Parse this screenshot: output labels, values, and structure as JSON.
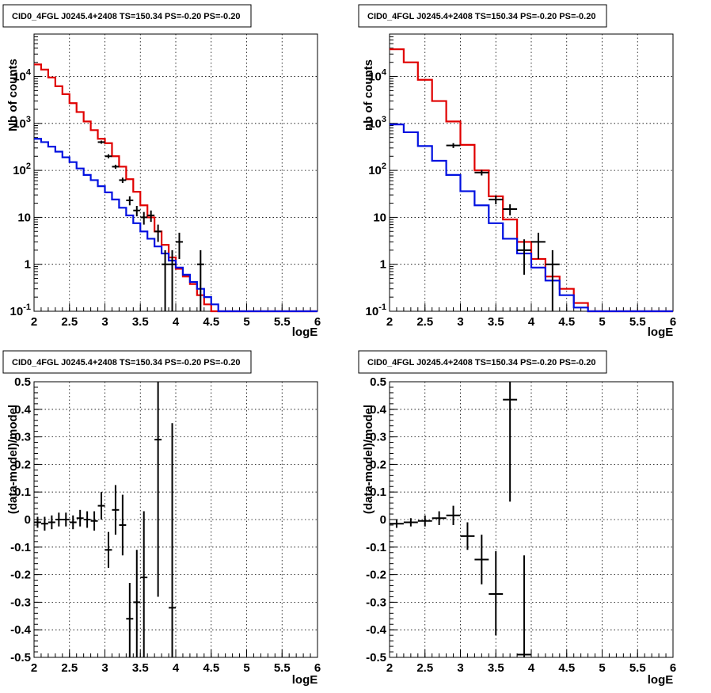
{
  "colors": {
    "data": "#000000",
    "total_model": "#e00000",
    "component_model": "#0010e0",
    "grid": "#000000"
  },
  "chart_data": [
    {
      "type": "line",
      "title": "CID0_4FGL J0245.4+2408 TS=150.34 PS=-0.20 PS=-0.20",
      "xlabel": "logE",
      "ylabel": "Nb of counts",
      "xlim": [
        2,
        6
      ],
      "ylim": [
        0.1,
        80000
      ],
      "yscale": "log",
      "grid": true,
      "x_ticks": [
        "2",
        "2.5",
        "3",
        "3.5",
        "4",
        "4.5",
        "5",
        "5.5",
        "6"
      ],
      "y_ticks": [
        {
          "value": 0.1,
          "base": "10",
          "exp": "-1"
        },
        {
          "value": 1,
          "text": "1"
        },
        {
          "value": 10,
          "text": "10"
        },
        {
          "value": 100,
          "base": "10",
          "exp": "2"
        },
        {
          "value": 1000,
          "base": "10",
          "exp": "3"
        },
        {
          "value": 10000,
          "base": "10",
          "exp": "4"
        }
      ],
      "bin_edges": [
        2.0,
        2.1,
        2.2,
        2.3,
        2.4,
        2.5,
        2.6,
        2.7,
        2.8,
        2.9,
        3.0,
        3.1,
        3.2,
        3.3,
        3.4,
        3.5,
        3.6,
        3.7,
        3.8,
        3.9,
        4.0,
        4.1,
        4.2,
        4.3,
        4.4,
        4.5,
        4.6,
        4.7,
        4.8,
        4.9,
        5.0,
        5.1,
        5.2,
        5.3,
        5.4,
        5.5,
        5.6,
        5.7,
        5.8,
        5.9,
        6.0
      ],
      "series": [
        {
          "kind": "step",
          "color": "total_model",
          "values": [
            18000,
            14000,
            9500,
            6200,
            4200,
            2700,
            1750,
            1100,
            720,
            470,
            380,
            200,
            120,
            65,
            35,
            18,
            10,
            5,
            2.6,
            1.4,
            0.8,
            0.55,
            0.38,
            0.22,
            0.14,
            0.1,
            0.08,
            0.08,
            0.08,
            0.08,
            0.08,
            0.08,
            0.08,
            0.08,
            0.08,
            0.08,
            0.08,
            0.08,
            0.08,
            0.08
          ]
        },
        {
          "kind": "step",
          "color": "component_model",
          "values": [
            470,
            400,
            320,
            250,
            190,
            150,
            110,
            80,
            62,
            46,
            34,
            24,
            16,
            11,
            7.5,
            5,
            3.5,
            2.4,
            1.7,
            1.2,
            0.85,
            0.6,
            0.42,
            0.3,
            0.2,
            0.14,
            0.1,
            0.1,
            0.1,
            0.1,
            0.1,
            0.1,
            0.1,
            0.1,
            0.1,
            0.1,
            0.1,
            0.1,
            0.1,
            0.1
          ]
        },
        {
          "kind": "points",
          "color": "data",
          "points": [
            {
              "x": 2.95,
              "y": 400,
              "lo": 370,
              "hi": 430,
              "xerr": 0.05
            },
            {
              "x": 3.05,
              "y": 200,
              "lo": 180,
              "hi": 220,
              "xerr": 0.05
            },
            {
              "x": 3.15,
              "y": 120,
              "lo": 108,
              "hi": 132,
              "xerr": 0.05
            },
            {
              "x": 3.25,
              "y": 62,
              "lo": 54,
              "hi": 70,
              "xerr": 0.05
            },
            {
              "x": 3.35,
              "y": 23,
              "lo": 18,
              "hi": 28,
              "xerr": 0.05
            },
            {
              "x": 3.45,
              "y": 14,
              "lo": 10.5,
              "hi": 17.5,
              "xerr": 0.05
            },
            {
              "x": 3.55,
              "y": 10,
              "lo": 7,
              "hi": 13,
              "xerr": 0.05
            },
            {
              "x": 3.65,
              "y": 11,
              "lo": 8,
              "hi": 14,
              "xerr": 0.05
            },
            {
              "x": 3.75,
              "y": 5,
              "lo": 3,
              "hi": 7,
              "xerr": 0.05
            },
            {
              "x": 3.85,
              "y": 1,
              "lo": 0.08,
              "hi": 2,
              "xerr": 0.05
            },
            {
              "x": 3.95,
              "y": 1,
              "lo": 0.08,
              "hi": 2,
              "xerr": 0.05
            },
            {
              "x": 4.05,
              "y": 3,
              "lo": 1.3,
              "hi": 4.7,
              "xerr": 0.05
            },
            {
              "x": 4.35,
              "y": 1,
              "lo": 0.08,
              "hi": 2,
              "xerr": 0.05
            }
          ]
        }
      ]
    },
    {
      "type": "line",
      "title": "CID0_4FGL J0245.4+2408 TS=150.34 PS=-0.20 PS=-0.20",
      "xlabel": "logE",
      "ylabel": "nb of counts",
      "xlim": [
        2,
        6
      ],
      "ylim": [
        0.1,
        80000
      ],
      "yscale": "log",
      "grid": true,
      "x_ticks": [
        "2",
        "2.5",
        "3",
        "3.5",
        "4",
        "4.5",
        "5",
        "5.5",
        "6"
      ],
      "y_ticks": [
        {
          "value": 0.1,
          "base": "10",
          "exp": "-1"
        },
        {
          "value": 1,
          "text": "1"
        },
        {
          "value": 10,
          "text": "10"
        },
        {
          "value": 100,
          "base": "10",
          "exp": "2"
        },
        {
          "value": 1000,
          "base": "10",
          "exp": "3"
        },
        {
          "value": 10000,
          "base": "10",
          "exp": "4"
        }
      ],
      "bin_edges": [
        2.0,
        2.2,
        2.4,
        2.6,
        2.8,
        3.0,
        3.2,
        3.4,
        3.6,
        3.8,
        4.0,
        4.2,
        4.4,
        4.6,
        4.8,
        5.0,
        5.2,
        5.4,
        5.6,
        5.8,
        6.0
      ],
      "series": [
        {
          "kind": "step",
          "color": "total_model",
          "values": [
            38000,
            20000,
            8500,
            3000,
            1100,
            350,
            100,
            28,
            9,
            3,
            1.3,
            0.55,
            0.3,
            0.15,
            0.1,
            0.08,
            0.08,
            0.08,
            0.08,
            0.08
          ]
        },
        {
          "kind": "step",
          "color": "component_model",
          "values": [
            950,
            650,
            330,
            160,
            80,
            36,
            18,
            7.5,
            3.5,
            1.7,
            0.85,
            0.45,
            0.22,
            0.12,
            0.1,
            0.1,
            0.1,
            0.1,
            0.1,
            0.1
          ]
        },
        {
          "kind": "points",
          "color": "data",
          "points": [
            {
              "x": 2.9,
              "y": 340,
              "lo": 300,
              "hi": 380,
              "xerr": 0.1
            },
            {
              "x": 3.3,
              "y": 90,
              "lo": 78,
              "hi": 102,
              "xerr": 0.1
            },
            {
              "x": 3.5,
              "y": 24,
              "lo": 19,
              "hi": 29,
              "xerr": 0.1
            },
            {
              "x": 3.7,
              "y": 15,
              "lo": 11,
              "hi": 19,
              "xerr": 0.1
            },
            {
              "x": 3.9,
              "y": 2,
              "lo": 0.6,
              "hi": 3.4,
              "xerr": 0.1
            },
            {
              "x": 4.1,
              "y": 3,
              "lo": 1.3,
              "hi": 4.7,
              "xerr": 0.1
            },
            {
              "x": 4.3,
              "y": 1,
              "lo": 0.08,
              "hi": 2,
              "xerr": 0.1
            }
          ]
        }
      ]
    },
    {
      "type": "scatter",
      "title": "CID0_4FGL J0245.4+2408 TS=150.34 PS=-0.20 PS=-0.20",
      "xlabel": "logE",
      "ylabel": "(data-model)/model",
      "xlim": [
        2,
        6
      ],
      "ylim": [
        -0.5,
        0.5
      ],
      "yscale": "linear",
      "grid": true,
      "x_ticks": [
        "2",
        "2.5",
        "3",
        "3.5",
        "4",
        "4.5",
        "5",
        "5.5",
        "6"
      ],
      "y_ticks": [
        {
          "value": -0.5,
          "text": "-0.5"
        },
        {
          "value": -0.4,
          "text": "-0.4"
        },
        {
          "value": -0.3,
          "text": "-0.3"
        },
        {
          "value": -0.2,
          "text": "-0.2"
        },
        {
          "value": -0.1,
          "text": "-0.1"
        },
        {
          "value": 0,
          "text": "0"
        },
        {
          "value": 0.1,
          "text": "0.1"
        },
        {
          "value": 0.2,
          "text": "0.2"
        },
        {
          "value": 0.3,
          "text": "0.3"
        },
        {
          "value": 0.4,
          "text": "0.4"
        },
        {
          "value": 0.5,
          "text": "0.5"
        }
      ],
      "series": [
        {
          "kind": "points",
          "color": "data",
          "points": [
            {
              "x": 2.05,
              "y": -0.01,
              "lo": -0.03,
              "hi": 0.01,
              "xerr": 0.05
            },
            {
              "x": 2.15,
              "y": -0.015,
              "lo": -0.04,
              "hi": 0.01,
              "xerr": 0.05
            },
            {
              "x": 2.25,
              "y": -0.01,
              "lo": -0.035,
              "hi": 0.015,
              "xerr": 0.05
            },
            {
              "x": 2.35,
              "y": 0.0,
              "lo": -0.025,
              "hi": 0.025,
              "xerr": 0.05
            },
            {
              "x": 2.45,
              "y": 0.0,
              "lo": -0.025,
              "hi": 0.025,
              "xerr": 0.05
            },
            {
              "x": 2.55,
              "y": -0.01,
              "lo": -0.035,
              "hi": 0.015,
              "xerr": 0.05
            },
            {
              "x": 2.65,
              "y": 0.005,
              "lo": -0.025,
              "hi": 0.035,
              "xerr": 0.05
            },
            {
              "x": 2.75,
              "y": 0.0,
              "lo": -0.03,
              "hi": 0.03,
              "xerr": 0.05
            },
            {
              "x": 2.85,
              "y": -0.005,
              "lo": -0.04,
              "hi": 0.03,
              "xerr": 0.05
            },
            {
              "x": 2.95,
              "y": 0.05,
              "lo": 0.0,
              "hi": 0.1,
              "xerr": 0.05
            },
            {
              "x": 3.05,
              "y": -0.11,
              "lo": -0.175,
              "hi": -0.045,
              "xerr": 0.05
            },
            {
              "x": 3.15,
              "y": 0.035,
              "lo": -0.055,
              "hi": 0.125,
              "xerr": 0.05
            },
            {
              "x": 3.25,
              "y": -0.02,
              "lo": -0.13,
              "hi": 0.09,
              "xerr": 0.05
            },
            {
              "x": 3.35,
              "y": -0.36,
              "lo": -0.5,
              "hi": -0.23,
              "xerr": 0.05
            },
            {
              "x": 3.45,
              "y": -0.3,
              "lo": -0.5,
              "hi": -0.11,
              "xerr": 0.05
            },
            {
              "x": 3.55,
              "y": -0.21,
              "lo": -0.5,
              "hi": 0.03,
              "xerr": 0.05
            },
            {
              "x": 3.75,
              "y": 0.29,
              "lo": -0.28,
              "hi": 0.5,
              "xerr": 0.05
            },
            {
              "x": 3.95,
              "y": -0.32,
              "lo": -0.5,
              "hi": 0.35,
              "xerr": 0.05
            }
          ]
        }
      ]
    },
    {
      "type": "scatter",
      "title": "CID0_4FGL J0245.4+2408 TS=150.34 PS=-0.20 PS=-0.20",
      "xlabel": "logE",
      "ylabel": "(data-model)/model",
      "xlim": [
        2,
        6
      ],
      "ylim": [
        -0.5,
        0.5
      ],
      "yscale": "linear",
      "grid": true,
      "x_ticks": [
        "2",
        "2.5",
        "3",
        "3.5",
        "4",
        "4.5",
        "5",
        "5.5",
        "6"
      ],
      "y_ticks": [
        {
          "value": -0.5,
          "text": "-0.5"
        },
        {
          "value": -0.4,
          "text": "-0.4"
        },
        {
          "value": -0.3,
          "text": "-0.3"
        },
        {
          "value": -0.2,
          "text": "-0.2"
        },
        {
          "value": -0.1,
          "text": "-0.1"
        },
        {
          "value": 0,
          "text": "0"
        },
        {
          "value": 0.1,
          "text": "0.1"
        },
        {
          "value": 0.2,
          "text": "0.2"
        },
        {
          "value": 0.3,
          "text": "0.3"
        },
        {
          "value": 0.4,
          "text": "0.4"
        },
        {
          "value": 0.5,
          "text": "0.5"
        }
      ],
      "series": [
        {
          "kind": "points",
          "color": "data",
          "points": [
            {
              "x": 2.1,
              "y": -0.015,
              "lo": -0.03,
              "hi": 0.0,
              "xerr": 0.1
            },
            {
              "x": 2.3,
              "y": -0.01,
              "lo": -0.025,
              "hi": 0.005,
              "xerr": 0.1
            },
            {
              "x": 2.5,
              "y": -0.005,
              "lo": -0.025,
              "hi": 0.015,
              "xerr": 0.1
            },
            {
              "x": 2.7,
              "y": 0.005,
              "lo": -0.02,
              "hi": 0.03,
              "xerr": 0.1
            },
            {
              "x": 2.9,
              "y": 0.015,
              "lo": -0.02,
              "hi": 0.05,
              "xerr": 0.1
            },
            {
              "x": 3.1,
              "y": -0.06,
              "lo": -0.11,
              "hi": -0.01,
              "xerr": 0.1
            },
            {
              "x": 3.3,
              "y": -0.145,
              "lo": -0.235,
              "hi": -0.055,
              "xerr": 0.1
            },
            {
              "x": 3.5,
              "y": -0.27,
              "lo": -0.42,
              "hi": -0.115,
              "xerr": 0.1
            },
            {
              "x": 3.7,
              "y": 0.435,
              "lo": 0.065,
              "hi": 0.5,
              "xerr": 0.1
            },
            {
              "x": 3.9,
              "y": -0.49,
              "lo": -0.5,
              "hi": -0.13,
              "xerr": 0.1
            }
          ]
        }
      ]
    }
  ]
}
